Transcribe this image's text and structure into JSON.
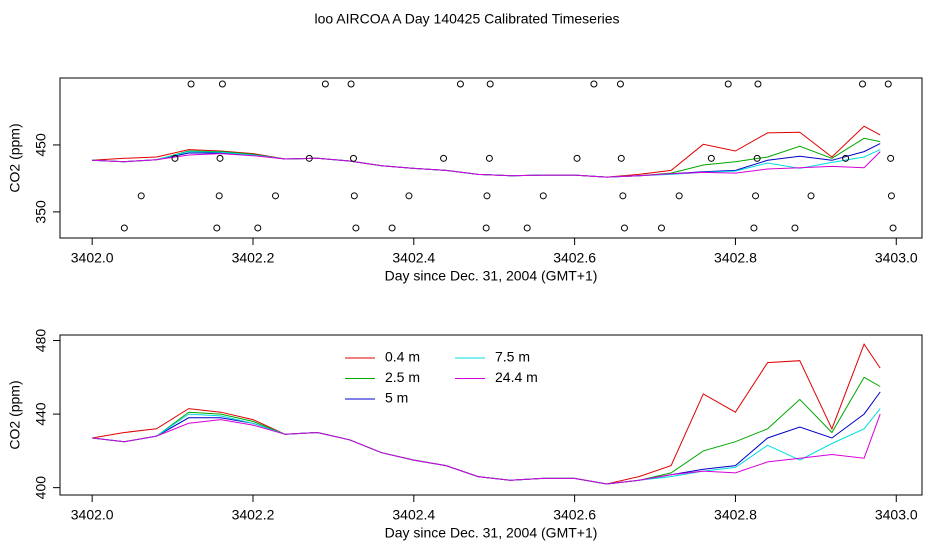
{
  "title": "loo AIRCOA A  Day 140425  Calibrated Timeseries",
  "chart_data": [
    {
      "type": "line",
      "xlabel": "Day since Dec. 31, 2004 (GMT+1)",
      "ylabel": "CO2 (ppm)",
      "xlim": [
        3401.96,
        3403.032
      ],
      "ylim": [
        311,
        550
      ],
      "xticks": [
        {
          "value": 3402,
          "label": "3402.0"
        },
        3402.2,
        3402.4,
        3402.6,
        3402.8,
        {
          "value": 3403,
          "label": "3403.0"
        }
      ],
      "yticks": [
        350,
        450
      ],
      "x": [
        3402.0,
        3402.04,
        3402.08,
        3402.12,
        3402.16,
        3402.2,
        3402.24,
        3402.28,
        3402.32,
        3402.36,
        3402.4,
        3402.44,
        3402.48,
        3402.52,
        3402.56,
        3402.6,
        3402.64,
        3402.68,
        3402.72,
        3402.76,
        3402.8,
        3402.84,
        3402.88,
        3402.92,
        3402.96,
        3402.98
      ],
      "series": [
        {
          "name": "0.4 m",
          "color": "#e00000",
          "values": [
            427,
            430,
            432,
            443,
            441,
            437,
            429,
            430,
            426,
            419,
            415,
            412,
            406,
            404,
            405,
            405,
            402,
            406,
            412,
            451,
            441,
            468,
            469,
            432,
            478,
            465
          ]
        },
        {
          "name": "2.5 m",
          "color": "#00a800",
          "values": [
            427,
            425,
            428,
            441,
            440,
            436,
            429,
            430,
            426,
            419,
            415,
            412,
            406,
            404,
            405,
            405,
            402,
            404,
            408,
            420,
            425,
            432,
            448,
            430,
            460,
            455
          ]
        },
        {
          "name": "5 m",
          "color": "#0000c8",
          "values": [
            427,
            425,
            428,
            438,
            438,
            435,
            429,
            430,
            426,
            419,
            415,
            412,
            406,
            404,
            405,
            405,
            402,
            404,
            407,
            410,
            412,
            427,
            433,
            427,
            440,
            452
          ]
        },
        {
          "name": "7.5 m",
          "color": "#00dede",
          "values": [
            427,
            425,
            428,
            440,
            439,
            435,
            429,
            430,
            426,
            419,
            415,
            412,
            406,
            404,
            405,
            405,
            402,
            404,
            406,
            409,
            411,
            423,
            415,
            424,
            432,
            443
          ]
        },
        {
          "name": "24.4 m",
          "color": "#d800d8",
          "values": [
            427,
            425,
            428,
            435,
            437,
            434,
            429,
            430,
            426,
            419,
            415,
            412,
            406,
            404,
            405,
            405,
            402,
            404,
            407,
            409,
            408,
            414,
            416,
            418,
            416,
            440
          ]
        }
      ],
      "points": {
        "x": [
          3402.123,
          3402.162,
          3402.29,
          3402.322,
          3402.458,
          3402.495,
          3402.624,
          3402.657,
          3402.791,
          3402.828,
          3402.958,
          3402.99,
          3402.103,
          3402.159,
          3402.27,
          3402.325,
          3402.437,
          3402.494,
          3402.603,
          3402.658,
          3402.77,
          3402.827,
          3402.937,
          3402.993,
          3402.061,
          3402.158,
          3402.228,
          3402.326,
          3402.394,
          3402.491,
          3402.561,
          3402.66,
          3402.73,
          3402.825,
          3402.894,
          3402.994,
          3402.04,
          3402.155,
          3402.206,
          3402.328,
          3402.373,
          3402.49,
          3402.541,
          3402.662,
          3402.708,
          3402.823,
          3402.874,
          3402.996
        ],
        "values": [
          541,
          541,
          541,
          541,
          541,
          541,
          541,
          541,
          541,
          541,
          541,
          541,
          430,
          430,
          430,
          430,
          430,
          430,
          430,
          430,
          430,
          430,
          430,
          430,
          374,
          374,
          374,
          374,
          374,
          374,
          374,
          374,
          374,
          374,
          374,
          374,
          326,
          326,
          326,
          326,
          326,
          326,
          326,
          326,
          326,
          326,
          326,
          326
        ]
      }
    },
    {
      "type": "line",
      "xlabel": "Day since Dec. 31, 2004 (GMT+1)",
      "ylabel": "CO2 (ppm)",
      "xlim": [
        3401.96,
        3403.032
      ],
      "ylim": [
        396,
        483
      ],
      "xticks": [
        {
          "value": 3402,
          "label": "3402.0"
        },
        3402.2,
        3402.4,
        3402.6,
        3402.8,
        {
          "value": 3403,
          "label": "3403.0"
        }
      ],
      "yticks": [
        400,
        440,
        480
      ],
      "legend": "top",
      "x": [
        3402.0,
        3402.04,
        3402.08,
        3402.12,
        3402.16,
        3402.2,
        3402.24,
        3402.28,
        3402.32,
        3402.36,
        3402.4,
        3402.44,
        3402.48,
        3402.52,
        3402.56,
        3402.6,
        3402.64,
        3402.68,
        3402.72,
        3402.76,
        3402.8,
        3402.84,
        3402.88,
        3402.92,
        3402.96,
        3402.98
      ],
      "series": [
        {
          "name": "0.4 m",
          "color": "#e00000",
          "values": [
            427,
            430,
            432,
            443,
            441,
            437,
            429,
            430,
            426,
            419,
            415,
            412,
            406,
            404,
            405,
            405,
            402,
            406,
            412,
            451,
            441,
            468,
            469,
            432,
            478,
            465
          ]
        },
        {
          "name": "2.5 m",
          "color": "#00a800",
          "values": [
            427,
            425,
            428,
            441,
            440,
            436,
            429,
            430,
            426,
            419,
            415,
            412,
            406,
            404,
            405,
            405,
            402,
            404,
            408,
            420,
            425,
            432,
            448,
            430,
            460,
            455
          ]
        },
        {
          "name": "5 m",
          "color": "#0000c8",
          "values": [
            427,
            425,
            428,
            438,
            438,
            435,
            429,
            430,
            426,
            419,
            415,
            412,
            406,
            404,
            405,
            405,
            402,
            404,
            407,
            410,
            412,
            427,
            433,
            427,
            440,
            452
          ]
        },
        {
          "name": "7.5 m",
          "color": "#00dede",
          "values": [
            427,
            425,
            428,
            440,
            439,
            435,
            429,
            430,
            426,
            419,
            415,
            412,
            406,
            404,
            405,
            405,
            402,
            404,
            406,
            409,
            411,
            423,
            415,
            424,
            432,
            443
          ]
        },
        {
          "name": "24.4 m",
          "color": "#d800d8",
          "values": [
            427,
            425,
            428,
            435,
            437,
            434,
            429,
            430,
            426,
            419,
            415,
            412,
            406,
            404,
            405,
            405,
            402,
            404,
            407,
            409,
            408,
            414,
            416,
            418,
            416,
            440
          ]
        }
      ]
    }
  ]
}
